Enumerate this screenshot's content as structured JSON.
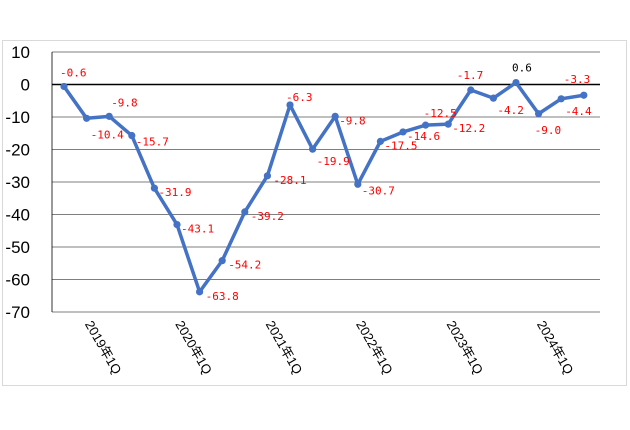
{
  "chart_data": {
    "type": "line",
    "title": "",
    "xlabel": "",
    "ylabel": "",
    "ylim": [
      -70,
      10
    ],
    "yticks": [
      10,
      0,
      -10,
      -20,
      -30,
      -40,
      -50,
      -60,
      -70
    ],
    "grid": true,
    "legend": "none",
    "x_tick_labels": [
      "2019年1Q",
      "2020年1Q",
      "2021年1Q",
      "2022年1Q",
      "2023年1Q",
      "2024年1Q"
    ],
    "series": [
      {
        "color": "#4472c4",
        "x": [
          "2019Q1",
          "2019Q2",
          "2019Q3",
          "2019Q4",
          "2020Q1",
          "2020Q2",
          "2020Q3",
          "2020Q4",
          "2021Q1",
          "2021Q2",
          "2021Q3",
          "2021Q4",
          "2022Q1",
          "2022Q2",
          "2022Q3",
          "2022Q4",
          "2023Q1",
          "2023Q2",
          "2023Q3",
          "2023Q4",
          "2024Q1",
          "2024Q2",
          "2024Q3",
          "2024Q4"
        ],
        "values": [
          -0.6,
          -10.4,
          -9.8,
          -15.7,
          -31.9,
          -43.1,
          -63.8,
          -54.2,
          -39.2,
          -28.1,
          -6.3,
          -19.9,
          -9.8,
          -30.7,
          -17.5,
          -14.6,
          -12.5,
          -12.2,
          -1.7,
          -4.2,
          0.6,
          -9.0,
          -4.4,
          -3.3
        ],
        "labels": [
          "-0.6",
          "-10.4",
          "-9.8",
          "-15.7",
          "-31.9",
          "-43.1",
          "-63.8",
          "-54.2",
          "-39.2",
          "-28.1",
          "-6.3",
          "-19.9",
          "-9.8",
          "-30.7",
          "-17.5",
          "-14.6",
          "-12.5",
          "-12.2",
          "-1.7",
          "-4.2",
          "0.6",
          "-9.0",
          "-4.4",
          "-3.3"
        ]
      }
    ],
    "colors": {
      "line": "#4472c4",
      "negative_label": "#ff0000",
      "positive_label": "#000000",
      "gridline": "#000000",
      "zero_line": "#000000"
    }
  }
}
